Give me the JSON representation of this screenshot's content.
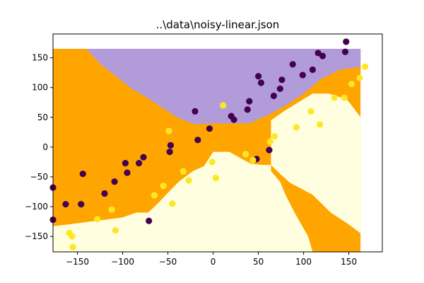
{
  "chart_data": {
    "type": "scatter",
    "title": "..\\data\\noisy-linear.json",
    "xlabel": "",
    "ylabel": "",
    "xlim": [
      -177,
      187
    ],
    "ylim": [
      -176,
      190
    ],
    "grid": false,
    "xticks": [
      -150,
      -100,
      -50,
      0,
      50,
      100,
      150
    ],
    "yticks": [
      -150,
      -100,
      -50,
      0,
      50,
      100,
      150
    ],
    "region_extent": {
      "x": [
        -177,
        163
      ],
      "y": [
        -176,
        165
      ]
    },
    "regions": [
      {
        "name": "purple-region",
        "color": "#b19cd9",
        "polygon": [
          [
            -177,
            165
          ],
          [
            -177,
            -10
          ],
          [
            -150,
            -15
          ],
          [
            -128,
            -35
          ],
          [
            -110,
            -50
          ],
          [
            -80,
            -75
          ],
          [
            -55,
            -55
          ],
          [
            -30,
            -35
          ],
          [
            -5,
            -15
          ],
          [
            10,
            -5
          ],
          [
            30,
            0
          ],
          [
            48,
            -10
          ],
          [
            64,
            15
          ],
          [
            80,
            35
          ],
          [
            95,
            55
          ],
          [
            108,
            70
          ],
          [
            120,
            85
          ],
          [
            134,
            98
          ],
          [
            148,
            110
          ],
          [
            163,
            118
          ],
          [
            163,
            165
          ]
        ]
      },
      {
        "name": "orange-region",
        "color": "#ffa500",
        "polygon": [
          [
            -140,
            165
          ],
          [
            -177,
            165
          ],
          [
            -177,
            -10
          ],
          [
            -150,
            -15
          ],
          [
            -128,
            -35
          ],
          [
            -110,
            -50
          ],
          [
            -80,
            -75
          ],
          [
            -55,
            -55
          ],
          [
            -30,
            -35
          ],
          [
            -5,
            -15
          ],
          [
            10,
            -5
          ],
          [
            30,
            0
          ],
          [
            48,
            -10
          ],
          [
            64,
            15
          ],
          [
            80,
            35
          ],
          [
            95,
            55
          ],
          [
            108,
            70
          ],
          [
            120,
            85
          ],
          [
            134,
            98
          ],
          [
            148,
            110
          ],
          [
            163,
            118
          ],
          [
            163,
            135
          ],
          [
            140,
            130
          ],
          [
            120,
            115
          ],
          [
            100,
            90
          ],
          [
            80,
            70
          ],
          [
            62,
            55
          ],
          [
            40,
            40
          ],
          [
            22,
            40
          ],
          [
            0,
            40
          ],
          [
            -20,
            38
          ],
          [
            -40,
            50
          ],
          [
            -60,
            70
          ],
          [
            -75,
            85
          ],
          [
            -92,
            100
          ],
          [
            -108,
            120
          ],
          [
            -125,
            140
          ]
        ]
      },
      {
        "name": "yellow-region",
        "color": "#ffffe0",
        "polygon": [
          [
            -177,
            -176
          ],
          [
            -177,
            -133
          ],
          [
            -160,
            -130
          ],
          [
            -140,
            -126
          ],
          [
            -120,
            -122
          ],
          [
            -100,
            -118
          ],
          [
            -85,
            -110
          ],
          [
            -72,
            -110
          ],
          [
            -62,
            -96
          ],
          [
            -52,
            -80
          ],
          [
            -38,
            -58
          ],
          [
            -22,
            -40
          ],
          [
            -10,
            -32
          ],
          [
            0,
            -8
          ],
          [
            18,
            -8
          ],
          [
            32,
            -20
          ],
          [
            42,
            -28
          ],
          [
            55,
            -30
          ],
          [
            64,
            -30
          ],
          [
            74,
            -45
          ],
          [
            85,
            -60
          ],
          [
            110,
            -80
          ],
          [
            130,
            -110
          ],
          [
            150,
            -130
          ],
          [
            163,
            -145
          ],
          [
            163,
            50
          ],
          [
            148,
            80
          ],
          [
            128,
            90
          ],
          [
            110,
            90
          ],
          [
            94,
            75
          ],
          [
            78,
            60
          ],
          [
            64,
            45
          ],
          [
            64,
            -40
          ],
          [
            74,
            -58
          ],
          [
            80,
            -80
          ],
          [
            90,
            -110
          ],
          [
            105,
            -150
          ],
          [
            110,
            -176
          ]
        ]
      },
      {
        "name": "purple-region-back",
        "color": "#b19cd9",
        "polygon": [
          [
            -177,
            165
          ],
          [
            -140,
            165
          ],
          [
            -125,
            140
          ],
          [
            -108,
            120
          ],
          [
            -92,
            100
          ],
          [
            -75,
            85
          ],
          [
            -60,
            70
          ],
          [
            -40,
            50
          ],
          [
            -20,
            38
          ],
          [
            0,
            40
          ],
          [
            22,
            40
          ],
          [
            40,
            40
          ],
          [
            62,
            55
          ],
          [
            80,
            70
          ],
          [
            100,
            90
          ],
          [
            120,
            115
          ],
          [
            140,
            130
          ],
          [
            163,
            135
          ],
          [
            163,
            165
          ]
        ]
      }
    ],
    "series": [
      {
        "color": "#440154",
        "points": [
          [
            -177,
            -68
          ],
          [
            -177,
            -122
          ],
          [
            -163,
            -96
          ],
          [
            -146,
            -96
          ],
          [
            -144,
            -45
          ],
          [
            -120,
            -78
          ],
          [
            -109,
            -58
          ],
          [
            -97,
            -27
          ],
          [
            -95,
            -43
          ],
          [
            -82,
            -27
          ],
          [
            -77,
            -17
          ],
          [
            -71,
            -124
          ],
          [
            -48,
            -8
          ],
          [
            -47,
            3
          ],
          [
            -20,
            60
          ],
          [
            -17,
            12
          ],
          [
            -4,
            31
          ],
          [
            20,
            52
          ],
          [
            23,
            46
          ],
          [
            38,
            63
          ],
          [
            40,
            77
          ],
          [
            48,
            -20
          ],
          [
            50,
            119
          ],
          [
            53,
            108
          ],
          [
            62,
            -5
          ],
          [
            67,
            86
          ],
          [
            74,
            98
          ],
          [
            76,
            113
          ],
          [
            88,
            139
          ],
          [
            99,
            121
          ],
          [
            110,
            130
          ],
          [
            116,
            158
          ],
          [
            121,
            153
          ],
          [
            146,
            160
          ],
          [
            147,
            177
          ]
        ]
      },
      {
        "color": "#fde725",
        "points": [
          [
            -159,
            -144
          ],
          [
            -156,
            -150
          ],
          [
            -155,
            -168
          ],
          [
            -128,
            -121
          ],
          [
            -112,
            -105
          ],
          [
            -108,
            -140
          ],
          [
            -65,
            -81
          ],
          [
            -55,
            -65
          ],
          [
            -49,
            27
          ],
          [
            -45,
            -95
          ],
          [
            -33,
            -41
          ],
          [
            -27,
            -56
          ],
          [
            -1,
            -25
          ],
          [
            3,
            -52
          ],
          [
            11,
            70
          ],
          [
            36,
            -12
          ],
          [
            44,
            -22
          ],
          [
            63,
            9
          ],
          [
            68,
            18
          ],
          [
            92,
            33
          ],
          [
            108,
            60
          ],
          [
            118,
            38
          ],
          [
            134,
            83
          ],
          [
            145,
            83
          ],
          [
            153,
            106
          ],
          [
            162,
            116
          ],
          [
            168,
            135
          ]
        ]
      }
    ]
  }
}
